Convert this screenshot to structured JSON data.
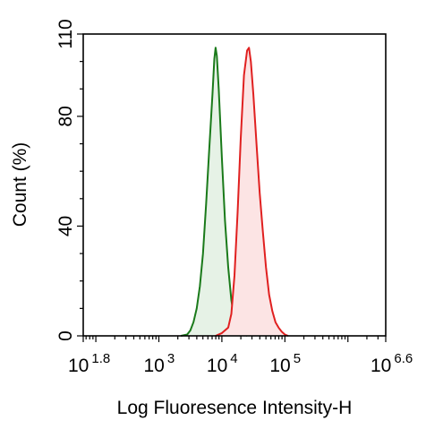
{
  "chart_data": {
    "type": "area",
    "title": "",
    "xlabel": "Log Fluoresence Intensity-H",
    "ylabel": "Count  (%)",
    "x_scale": "log10",
    "xlim": [
      1.8,
      6.6
    ],
    "ylim": [
      0,
      110
    ],
    "x_ticks": [
      {
        "exp": 1.8,
        "base": "10",
        "sup": "1.8"
      },
      {
        "exp": 3,
        "base": "10",
        "sup": "3"
      },
      {
        "exp": 4,
        "base": "10",
        "sup": "4"
      },
      {
        "exp": 5,
        "base": "10",
        "sup": "5"
      },
      {
        "exp": 6.6,
        "base": "10",
        "sup": "6.6"
      }
    ],
    "y_ticks": [
      {
        "value": 0,
        "label": "0"
      },
      {
        "value": 40,
        "label": "40"
      },
      {
        "value": 80,
        "label": "80"
      },
      {
        "value": 110,
        "label": "110"
      }
    ],
    "grid": false,
    "legend": "none",
    "series": [
      {
        "color": "#1a7a1a",
        "fill": "#e6f2e6",
        "points": [
          [
            3.35,
            0
          ],
          [
            3.45,
            0.5
          ],
          [
            3.5,
            2
          ],
          [
            3.55,
            5
          ],
          [
            3.6,
            10
          ],
          [
            3.65,
            18
          ],
          [
            3.7,
            30
          ],
          [
            3.75,
            48
          ],
          [
            3.8,
            68
          ],
          [
            3.85,
            88
          ],
          [
            3.88,
            101
          ],
          [
            3.9,
            105
          ],
          [
            3.92,
            102
          ],
          [
            3.95,
            90
          ],
          [
            4.0,
            65
          ],
          [
            4.05,
            42
          ],
          [
            4.1,
            25
          ],
          [
            4.15,
            13
          ],
          [
            4.2,
            6
          ],
          [
            4.25,
            2.5
          ],
          [
            4.3,
            1
          ],
          [
            4.4,
            0
          ]
        ]
      },
      {
        "color": "#e02020",
        "fill": "#fce4e4",
        "points": [
          [
            3.9,
            0
          ],
          [
            4.0,
            1
          ],
          [
            4.1,
            3
          ],
          [
            4.15,
            8
          ],
          [
            4.2,
            22
          ],
          [
            4.25,
            45
          ],
          [
            4.3,
            72
          ],
          [
            4.35,
            95
          ],
          [
            4.4,
            104
          ],
          [
            4.43,
            105
          ],
          [
            4.46,
            100
          ],
          [
            4.5,
            88
          ],
          [
            4.55,
            70
          ],
          [
            4.6,
            52
          ],
          [
            4.65,
            38
          ],
          [
            4.7,
            25
          ],
          [
            4.75,
            15
          ],
          [
            4.8,
            9
          ],
          [
            4.85,
            5
          ],
          [
            4.9,
            3
          ],
          [
            4.95,
            1.5
          ],
          [
            5.0,
            0.5
          ],
          [
            5.05,
            0
          ]
        ]
      }
    ]
  }
}
